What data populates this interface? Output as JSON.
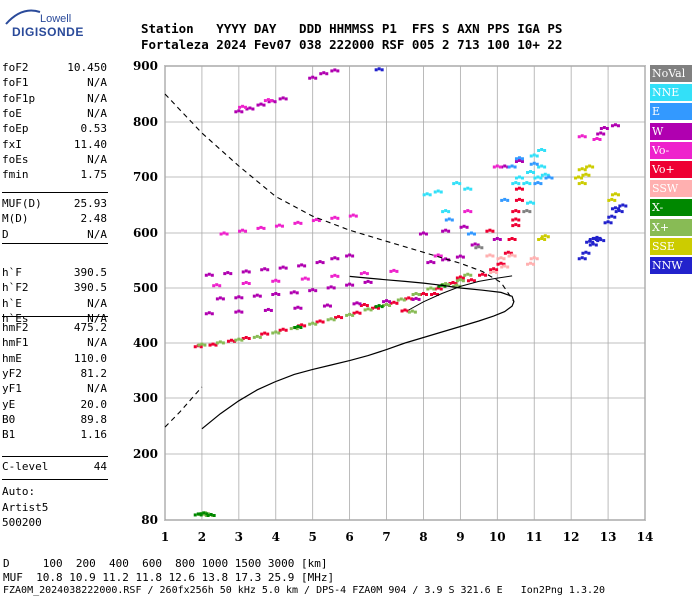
{
  "logo": {
    "top": "Lowell",
    "bottom": "DIGISONDE"
  },
  "header": {
    "line1": "Station   YYYY DAY   DDD HHMMSS P1  FFS S AXN PPS IGA PS",
    "line2": "Fortaleza 2024 Fev07 038 222000 RSF 005 2 713 100 10+ 22"
  },
  "params_group1": [
    {
      "label": "foF2",
      "value": "10.450"
    },
    {
      "label": "foF1",
      "value": "N/A"
    },
    {
      "label": "foF1p",
      "value": "N/A"
    },
    {
      "label": "foE",
      "value": "N/A"
    },
    {
      "label": "foEp",
      "value": "0.53"
    },
    {
      "label": "fxI",
      "value": "11.40"
    },
    {
      "label": "foEs",
      "value": "N/A"
    },
    {
      "label": "fmin",
      "value": "1.75"
    }
  ],
  "params_group2": [
    {
      "label": "MUF(D)",
      "value": "25.93"
    },
    {
      "label": "M(D)",
      "value": "2.48"
    },
    {
      "label": "D",
      "value": "N/A"
    }
  ],
  "params_group3": [
    {
      "label": "h`F",
      "value": "390.5"
    },
    {
      "label": "h`F2",
      "value": "390.5"
    },
    {
      "label": "h`E",
      "value": "N/A"
    },
    {
      "label": "h`Es",
      "value": "N/A"
    }
  ],
  "params_group4": [
    {
      "label": "hmF2",
      "value": "475.2"
    },
    {
      "label": "hmF1",
      "value": "N/A"
    },
    {
      "label": "hmE",
      "value": "110.0"
    },
    {
      "label": "yF2",
      "value": "81.2"
    },
    {
      "label": "yF1",
      "value": "N/A"
    },
    {
      "label": "yE",
      "value": "20.0"
    },
    {
      "label": "B0",
      "value": "89.8"
    },
    {
      "label": "B1",
      "value": "1.16"
    }
  ],
  "params_group5": [
    {
      "label": "C-level",
      "value": "44"
    }
  ],
  "autoscale": {
    "line1": "Auto:",
    "line2": "Artist5",
    "line3": "500200"
  },
  "footer": {
    "line1": "D     100  200  400  600  800 1000 1500 3000 [km]",
    "line2": "MUF  10.8 10.9 11.2 11.8 12.6 13.8 17.3 25.9 [MHz]",
    "line3": "FZA0M_2024038222000.RSF / 260fx256h 50 kHz 5.0 km / DPS-4 FZA0M 904 / 3.9 S 321.6 E   Ion2Png 1.3.20"
  },
  "legend": [
    {
      "label": "NoVal",
      "color": "#808080"
    },
    {
      "label": "NNE",
      "color": "#33e0f8"
    },
    {
      "label": "E",
      "color": "#3399ff"
    },
    {
      "label": "W",
      "color": "#b000b0"
    },
    {
      "label": "Vo-",
      "color": "#ee22cc"
    },
    {
      "label": "Vo+",
      "color": "#ee0033"
    },
    {
      "label": "SSW",
      "color": "#ffb0b0"
    },
    {
      "label": "X-",
      "color": "#008800"
    },
    {
      "label": "X+",
      "color": "#88bb55"
    },
    {
      "label": "SSE",
      "color": "#cccc00"
    },
    {
      "label": "NNW",
      "color": "#2222cc"
    }
  ],
  "chart_data": {
    "type": "scatter",
    "xlim": [
      1,
      14
    ],
    "ylim": [
      80,
      900
    ],
    "x_ticks": [
      1,
      2,
      3,
      4,
      5,
      6,
      7,
      8,
      9,
      10,
      11,
      12,
      13,
      14
    ],
    "y_ticks": [
      80,
      200,
      300,
      400,
      500,
      600,
      700,
      800,
      900
    ],
    "grid": true,
    "legend_position": "right",
    "series": [
      {
        "name": "Vo+",
        "color": "#ee0033",
        "points": [
          [
            1.9,
            395
          ],
          [
            2.3,
            398
          ],
          [
            2.8,
            405
          ],
          [
            3.2,
            410
          ],
          [
            3.7,
            418
          ],
          [
            4.2,
            425
          ],
          [
            4.7,
            433
          ],
          [
            5.2,
            440
          ],
          [
            5.7,
            448
          ],
          [
            6.2,
            456
          ],
          [
            6.7,
            465
          ],
          [
            7.2,
            474
          ],
          [
            7.6,
            482
          ],
          [
            8.0,
            490
          ],
          [
            8.4,
            500
          ],
          [
            8.8,
            510
          ],
          [
            9.0,
            520
          ],
          [
            9.3,
            515
          ],
          [
            9.6,
            525
          ],
          [
            9.9,
            535
          ],
          [
            10.1,
            545
          ],
          [
            10.3,
            565
          ],
          [
            10.4,
            590
          ],
          [
            10.5,
            615
          ],
          [
            10.5,
            640
          ],
          [
            10.6,
            660
          ],
          [
            10.6,
            680
          ],
          [
            10.5,
            625
          ],
          [
            9.8,
            605
          ],
          [
            7.5,
            460
          ],
          [
            8.3,
            490
          ],
          [
            6.4,
            470
          ]
        ]
      },
      {
        "name": "X+",
        "color": "#88bb55",
        "points": [
          [
            2.0,
            398
          ],
          [
            2.5,
            402
          ],
          [
            3.0,
            407
          ],
          [
            3.5,
            412
          ],
          [
            4.0,
            420
          ],
          [
            4.5,
            428
          ],
          [
            5.0,
            436
          ],
          [
            5.5,
            444
          ],
          [
            6.0,
            452
          ],
          [
            6.5,
            462
          ],
          [
            7.0,
            470
          ],
          [
            7.4,
            480
          ],
          [
            7.8,
            490
          ],
          [
            8.2,
            500
          ],
          [
            8.6,
            508
          ],
          [
            9.0,
            515
          ],
          [
            9.2,
            525
          ],
          [
            2.0,
            92
          ],
          [
            2.1,
            93
          ],
          [
            2.2,
            90
          ],
          [
            7.7,
            458
          ],
          [
            8.9,
            505
          ]
        ]
      },
      {
        "name": "X-",
        "color": "#008800",
        "points": [
          [
            1.9,
            91
          ],
          [
            2.05,
            93
          ],
          [
            2.25,
            90
          ],
          [
            4.6,
            430
          ],
          [
            6.8,
            468
          ],
          [
            8.5,
            505
          ]
        ]
      },
      {
        "name": "W",
        "color": "#b000b0",
        "points": [
          [
            2.2,
            525
          ],
          [
            2.7,
            528
          ],
          [
            3.2,
            531
          ],
          [
            3.7,
            535
          ],
          [
            4.2,
            538
          ],
          [
            4.7,
            542
          ],
          [
            5.2,
            548
          ],
          [
            5.6,
            555
          ],
          [
            6.0,
            560
          ],
          [
            2.5,
            482
          ],
          [
            3.0,
            484
          ],
          [
            3.5,
            487
          ],
          [
            4.0,
            490
          ],
          [
            4.5,
            493
          ],
          [
            5.0,
            497
          ],
          [
            5.5,
            502
          ],
          [
            6.0,
            507
          ],
          [
            6.5,
            512
          ],
          [
            2.2,
            455
          ],
          [
            3.0,
            458
          ],
          [
            3.8,
            461
          ],
          [
            4.6,
            465
          ],
          [
            5.4,
            469
          ],
          [
            6.2,
            473
          ],
          [
            7.0,
            477
          ],
          [
            7.8,
            481
          ],
          [
            8.2,
            548
          ],
          [
            8.6,
            553
          ],
          [
            9.0,
            558
          ],
          [
            8.0,
            600
          ],
          [
            8.6,
            605
          ],
          [
            9.1,
            612
          ],
          [
            3.0,
            820
          ],
          [
            3.3,
            825
          ],
          [
            3.6,
            832
          ],
          [
            3.9,
            838
          ],
          [
            4.2,
            843
          ],
          [
            5.0,
            880
          ],
          [
            5.3,
            888
          ],
          [
            5.6,
            893
          ],
          [
            10.2,
            720
          ],
          [
            10.6,
            730
          ],
          [
            12.8,
            780
          ],
          [
            12.9,
            790
          ],
          [
            13.2,
            795
          ],
          [
            9.4,
            580
          ],
          [
            10.0,
            590
          ]
        ]
      },
      {
        "name": "Vo-",
        "color": "#ee22cc",
        "points": [
          [
            2.6,
            600
          ],
          [
            3.1,
            605
          ],
          [
            3.6,
            610
          ],
          [
            4.1,
            614
          ],
          [
            4.6,
            619
          ],
          [
            5.1,
            624
          ],
          [
            5.6,
            628
          ],
          [
            6.1,
            632
          ],
          [
            2.4,
            506
          ],
          [
            3.2,
            510
          ],
          [
            4.0,
            514
          ],
          [
            4.8,
            518
          ],
          [
            5.6,
            523
          ],
          [
            6.4,
            528
          ],
          [
            7.2,
            532
          ],
          [
            3.1,
            828
          ],
          [
            3.8,
            840
          ],
          [
            12.3,
            775
          ],
          [
            12.7,
            770
          ],
          [
            8.4,
            560
          ],
          [
            9.2,
            640
          ],
          [
            10.0,
            720
          ]
        ]
      },
      {
        "name": "NNE",
        "color": "#33e0f8",
        "points": [
          [
            8.1,
            670
          ],
          [
            8.4,
            675
          ],
          [
            8.9,
            690
          ],
          [
            9.2,
            680
          ],
          [
            10.6,
            700
          ],
          [
            10.9,
            710
          ],
          [
            11.1,
            700
          ],
          [
            11.3,
            705
          ],
          [
            11.2,
            720
          ],
          [
            11.0,
            740
          ],
          [
            11.2,
            750
          ],
          [
            10.8,
            690
          ],
          [
            10.9,
            655
          ],
          [
            10.5,
            690
          ],
          [
            8.6,
            640
          ]
        ]
      },
      {
        "name": "E",
        "color": "#3399ff",
        "points": [
          [
            8.7,
            625
          ],
          [
            9.3,
            600
          ],
          [
            10.4,
            720
          ],
          [
            10.6,
            735
          ],
          [
            11.0,
            725
          ],
          [
            11.1,
            690
          ],
          [
            11.4,
            700
          ],
          [
            10.2,
            660
          ]
        ]
      },
      {
        "name": "SSE",
        "color": "#cccc00",
        "points": [
          [
            12.2,
            700
          ],
          [
            12.3,
            715
          ],
          [
            12.4,
            705
          ],
          [
            12.3,
            690
          ],
          [
            12.5,
            720
          ],
          [
            13.1,
            660
          ],
          [
            13.2,
            670
          ],
          [
            11.2,
            590
          ],
          [
            11.3,
            595
          ]
        ]
      },
      {
        "name": "NNW",
        "color": "#2222cc",
        "points": [
          [
            12.3,
            555
          ],
          [
            12.4,
            565
          ],
          [
            12.5,
            585
          ],
          [
            12.6,
            590
          ],
          [
            12.7,
            592
          ],
          [
            12.8,
            588
          ],
          [
            12.6,
            580
          ],
          [
            13.0,
            620
          ],
          [
            13.1,
            630
          ],
          [
            13.3,
            640
          ],
          [
            13.4,
            650
          ],
          [
            13.2,
            645
          ],
          [
            6.8,
            895
          ]
        ]
      },
      {
        "name": "SSW",
        "color": "#ffb0b0",
        "points": [
          [
            9.8,
            560
          ],
          [
            10.1,
            555
          ],
          [
            10.4,
            560
          ],
          [
            10.9,
            545
          ],
          [
            11.0,
            555
          ],
          [
            9.9,
            530
          ],
          [
            10.2,
            540
          ]
        ]
      },
      {
        "name": "NoVal",
        "color": "#808080",
        "points": [
          [
            9.5,
            575
          ],
          [
            10.8,
            640
          ]
        ]
      }
    ],
    "profile_solid": [
      [
        2.0,
        245
      ],
      [
        2.5,
        272
      ],
      [
        3.0,
        295
      ],
      [
        3.5,
        315
      ],
      [
        4.0,
        330
      ],
      [
        4.5,
        343
      ],
      [
        5.0,
        352
      ],
      [
        5.5,
        360
      ],
      [
        6.0,
        368
      ],
      [
        6.5,
        377
      ],
      [
        7.0,
        388
      ],
      [
        7.5,
        400
      ],
      [
        8.0,
        410
      ],
      [
        8.5,
        420
      ],
      [
        9.0,
        430
      ],
      [
        9.5,
        440
      ],
      [
        9.9,
        449
      ],
      [
        10.2,
        457
      ],
      [
        10.4,
        467
      ],
      [
        10.45,
        475.2
      ],
      [
        10.4,
        485
      ],
      [
        10.1,
        492
      ],
      [
        9.6,
        496
      ],
      [
        9.0,
        500
      ],
      [
        8.5,
        505
      ],
      [
        8.0,
        509
      ],
      [
        7.5,
        512
      ],
      [
        7.0,
        515
      ],
      [
        6.5,
        518
      ],
      [
        6.0,
        521
      ]
    ],
    "profile_dashed": [
      [
        1.0,
        850
      ],
      [
        1.5,
        815
      ],
      [
        2.0,
        780
      ],
      [
        3.0,
        720
      ],
      [
        4.0,
        665
      ],
      [
        5.0,
        630
      ],
      [
        6.0,
        605
      ],
      [
        7.0,
        585
      ],
      [
        8.0,
        565
      ],
      [
        9.0,
        545
      ],
      [
        9.6,
        530
      ],
      [
        10.1,
        510
      ],
      [
        10.45,
        475.2
      ],
      [
        1.0,
        248
      ],
      [
        1.4,
        275
      ],
      [
        1.8,
        305
      ],
      [
        2.0,
        320
      ]
    ],
    "trace_line": [
      [
        7.6,
        460
      ],
      [
        8.0,
        475
      ],
      [
        8.5,
        490
      ],
      [
        9.0,
        503
      ],
      [
        9.5,
        512
      ],
      [
        10.0,
        518
      ],
      [
        10.4,
        522
      ]
    ]
  }
}
